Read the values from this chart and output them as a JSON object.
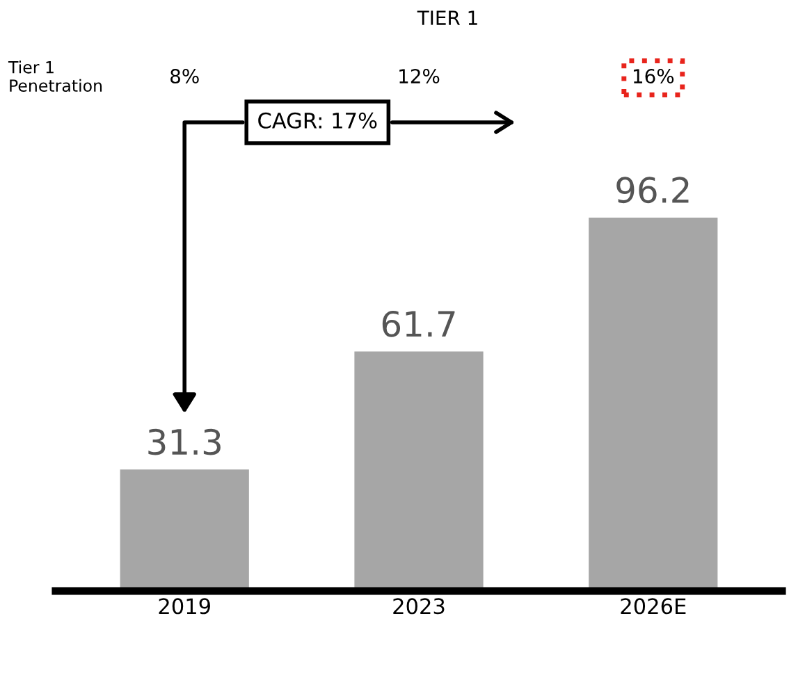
{
  "chart_data": {
    "type": "bar",
    "title": "TIER 1",
    "categories": [
      "2019",
      "2023",
      "2026E"
    ],
    "values": [
      31.3,
      61.7,
      96.2
    ],
    "color": "#a6a6a6",
    "data_labels": true,
    "grid": false,
    "legend": false,
    "annotations": [
      "Tier 1\nPenetration",
      "8%",
      "12%",
      "16%",
      "CAGR: 17%"
    ]
  }
}
